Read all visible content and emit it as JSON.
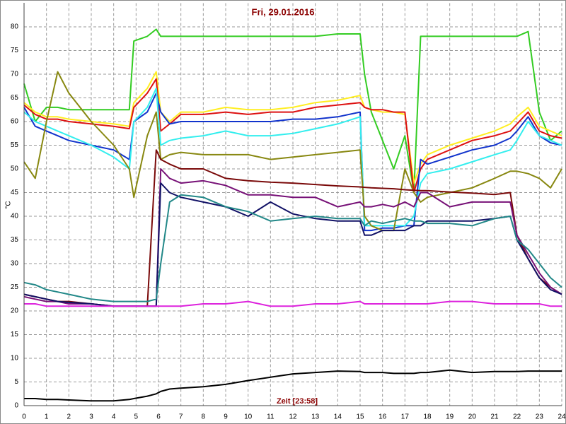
{
  "chart_data": {
    "type": "line",
    "title": "Fri, 29.01.2016",
    "x_label": "Zeit [23:58]",
    "y_label": "°C",
    "x": [
      0,
      0.5,
      1,
      1.5,
      2,
      3,
      4,
      4.7,
      4.9,
      5.5,
      5.9,
      6.1,
      6.5,
      7,
      8,
      9,
      10,
      11,
      12,
      13,
      14,
      15,
      15.2,
      15.5,
      16,
      16.5,
      17,
      17.4,
      17.7,
      18,
      19,
      20,
      21,
      21.7,
      22,
      22.5,
      23,
      23.5,
      24
    ],
    "xlim": [
      0,
      24
    ],
    "ylim": [
      0,
      85
    ],
    "xticks": [
      0,
      1,
      2,
      3,
      4,
      5,
      6,
      7,
      8,
      9,
      10,
      11,
      12,
      13,
      14,
      15,
      16,
      17,
      18,
      19,
      20,
      21,
      22,
      23,
      24
    ],
    "yticks": [
      0,
      5,
      10,
      15,
      20,
      25,
      30,
      35,
      40,
      45,
      50,
      55,
      60,
      65,
      70,
      75,
      80
    ],
    "grid": true,
    "series": [
      {
        "color": "#33cc22",
        "values": [
          68,
          60,
          63,
          63,
          62.5,
          62.5,
          62.5,
          62.5,
          77,
          78,
          79.5,
          78,
          78,
          78,
          78,
          78,
          78,
          78,
          78,
          78,
          78.5,
          78.5,
          70,
          62,
          56,
          50,
          57,
          45,
          78,
          78,
          78,
          78,
          78,
          78,
          78,
          79,
          62,
          56,
          58
        ]
      },
      {
        "color": "#ffee22",
        "values": [
          64,
          62,
          61,
          61,
          60.5,
          60,
          59.5,
          59,
          64,
          67,
          70.5,
          62,
          60,
          62,
          62,
          63,
          62.5,
          62.5,
          63,
          64,
          64.5,
          65.5,
          63,
          62.5,
          62,
          62,
          61.5,
          47,
          51,
          53,
          55,
          56.5,
          58,
          59.5,
          61,
          63,
          59,
          58,
          57
        ]
      },
      {
        "color": "#dd1111",
        "values": [
          63.5,
          61.5,
          60.5,
          60.5,
          60,
          59.5,
          59,
          58.5,
          63,
          66,
          69,
          58,
          59.5,
          61.5,
          61.5,
          62,
          61.5,
          62,
          62,
          63,
          63.5,
          64,
          63,
          62.5,
          62.5,
          62,
          62,
          45,
          50,
          52,
          54,
          56,
          57,
          58,
          59.5,
          62,
          58,
          57,
          56.5
        ]
      },
      {
        "color": "#1133cc",
        "values": [
          63,
          59,
          58,
          57,
          56,
          55,
          54,
          52,
          60,
          62,
          66,
          62,
          59.5,
          60,
          60,
          60,
          60,
          60,
          60.5,
          60.5,
          61,
          62,
          37,
          37,
          37.5,
          37.5,
          38,
          38,
          52,
          51,
          52.5,
          54,
          55,
          56.5,
          58,
          61,
          57,
          55.5,
          55
        ]
      },
      {
        "color": "#33eeee",
        "values": [
          62,
          60,
          59,
          58,
          57,
          55,
          52.5,
          50,
          60,
          63,
          67,
          55,
          56,
          56.5,
          57,
          58,
          57,
          57,
          57.5,
          58.5,
          59.5,
          61,
          38,
          38,
          38,
          38,
          38,
          40,
          47,
          49,
          50,
          51.5,
          53,
          54,
          56,
          60,
          57,
          56,
          55
        ]
      },
      {
        "color": "#888811",
        "values": [
          51.5,
          48,
          60,
          70.5,
          66,
          60,
          55,
          50,
          44,
          57,
          62,
          52,
          53,
          53.5,
          53,
          53,
          53,
          52,
          52.5,
          53,
          53.5,
          54,
          40,
          38,
          37,
          37,
          50,
          45,
          43,
          44,
          45,
          46,
          48,
          49.5,
          49.5,
          49,
          48,
          46,
          50
        ]
      },
      {
        "color": "#7a0a0a",
        "values": [
          23.5,
          23,
          22.5,
          22,
          22,
          21.5,
          21,
          21,
          21,
          21,
          54,
          52,
          51,
          50,
          50,
          48,
          47.5,
          47.2,
          47,
          46.7,
          46.4,
          46.2,
          46.1,
          46,
          45.9,
          45.8,
          45.6,
          45.5,
          45.4,
          45.4,
          45.1,
          44.9,
          44.6,
          45,
          36,
          31,
          27,
          25,
          23.5
        ]
      },
      {
        "color": "#771177",
        "values": [
          23,
          22.5,
          22,
          22,
          21.5,
          21.5,
          21,
          21,
          21,
          21,
          21,
          50,
          48,
          47,
          47.5,
          46.5,
          44.5,
          44.5,
          44,
          44,
          42,
          43,
          42,
          42,
          42.5,
          42,
          43,
          42,
          45,
          45,
          42,
          43,
          43,
          43,
          36,
          32,
          28,
          25,
          23.5
        ]
      },
      {
        "color": "#111166",
        "values": [
          23.5,
          23,
          22.5,
          22,
          21.8,
          21.5,
          21,
          21,
          21,
          21,
          21,
          47,
          45,
          44,
          43,
          42,
          40,
          43,
          40.5,
          39.5,
          39,
          39,
          36,
          36,
          37,
          37,
          37,
          38,
          38,
          39,
          39,
          39,
          39.5,
          40,
          35,
          31,
          27,
          24.5,
          23.5
        ]
      },
      {
        "color": "#228888",
        "values": [
          26,
          25.5,
          24.5,
          24,
          23.5,
          22.5,
          22,
          22,
          22,
          22,
          22.5,
          30,
          43,
          44.5,
          44,
          42,
          41,
          39,
          39.5,
          40,
          39.5,
          39.5,
          38,
          39,
          38.5,
          39,
          39.5,
          39,
          39,
          38.5,
          38.5,
          38,
          39.5,
          40,
          35,
          33,
          30,
          27,
          25
        ]
      },
      {
        "color": "#dd22dd",
        "values": [
          21.5,
          21.5,
          21,
          21,
          21,
          21,
          21,
          21,
          21,
          21,
          21,
          21,
          21,
          21,
          21.5,
          21.5,
          22,
          21,
          21,
          21.5,
          21.5,
          22,
          21.5,
          21.5,
          21.5,
          21.5,
          21.5,
          21.5,
          21.5,
          21.5,
          22,
          22,
          21.5,
          21.5,
          21.5,
          21.5,
          21.5,
          21,
          21
        ]
      },
      {
        "color": "#000000",
        "values": [
          1.5,
          1.5,
          1.3,
          1.3,
          1.2,
          1,
          1,
          1.3,
          1.5,
          2,
          2.5,
          3,
          3.5,
          3.7,
          4,
          4.5,
          5.3,
          6,
          6.7,
          7,
          7.3,
          7.2,
          7,
          7,
          7,
          6.8,
          6.8,
          6.8,
          7,
          7,
          7.5,
          7,
          7.2,
          7.2,
          7.2,
          7.3,
          7.3,
          7.3,
          7.3
        ]
      }
    ]
  }
}
